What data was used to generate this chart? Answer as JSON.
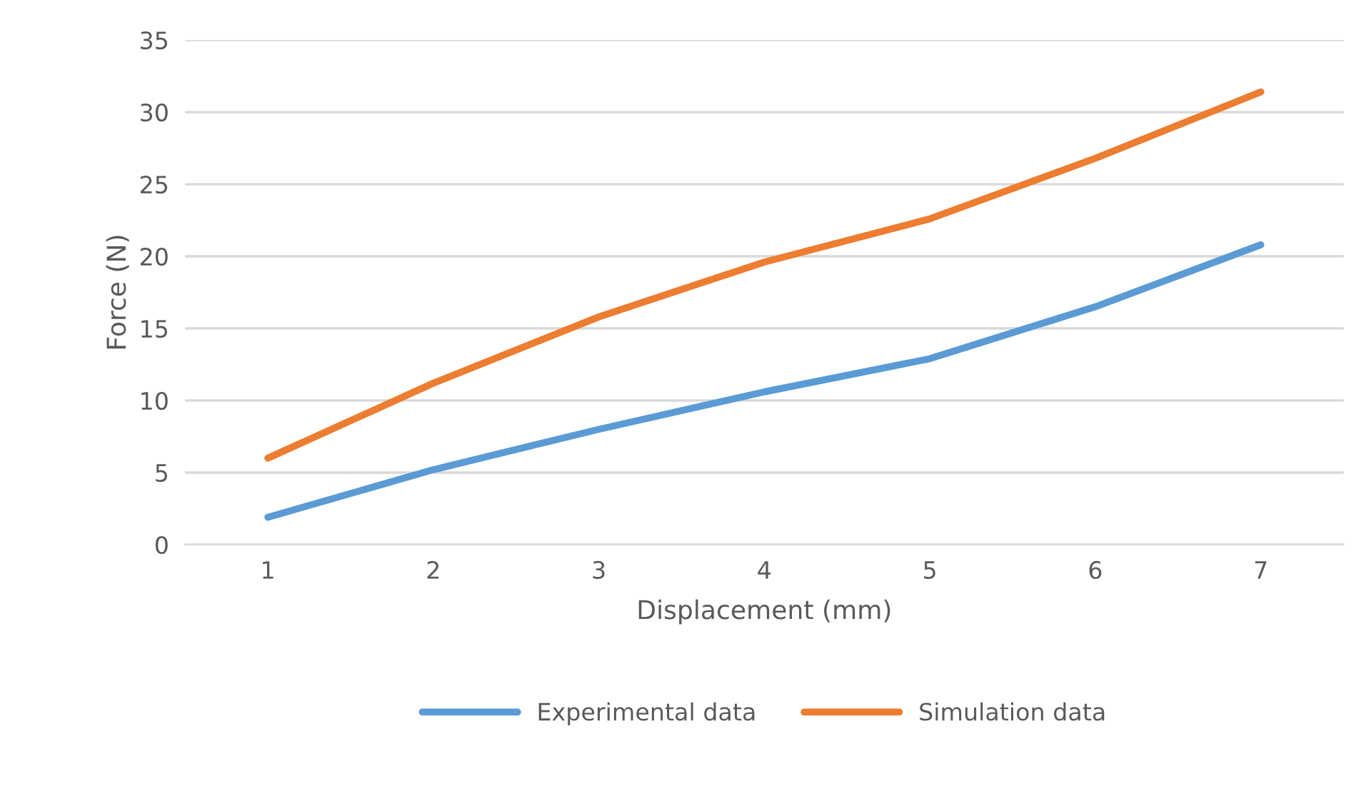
{
  "chart_data": {
    "type": "line",
    "xlabel": "Displacement (mm)",
    "ylabel": "Force (N)",
    "categories": [
      "1",
      "2",
      "3",
      "4",
      "5",
      "6",
      "7"
    ],
    "series": [
      {
        "name": "Experimental data",
        "color": "#5b9bd5",
        "values": [
          1.9,
          5.2,
          8.0,
          10.6,
          12.9,
          16.5,
          20.8
        ]
      },
      {
        "name": "Simulation data",
        "color": "#ed7d31",
        "values": [
          6.0,
          11.2,
          15.8,
          19.6,
          22.6,
          26.8,
          31.4
        ]
      }
    ],
    "ylim": [
      0,
      35
    ],
    "yticks": [
      0,
      5,
      10,
      15,
      20,
      25,
      30,
      35
    ],
    "grid": "y",
    "legend": "bottom",
    "marker": "none",
    "line_style": "solid"
  }
}
